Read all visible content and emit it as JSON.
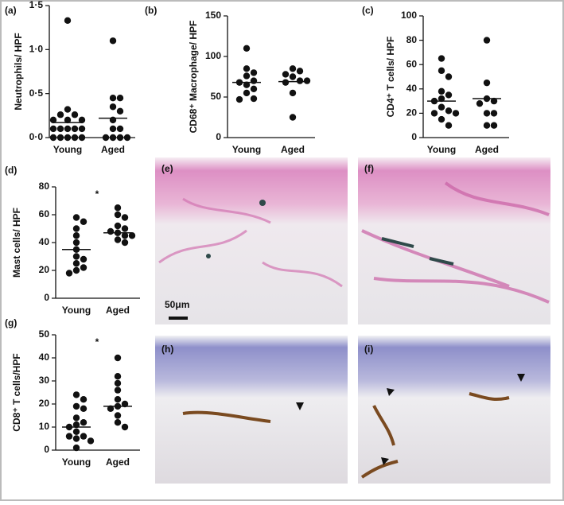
{
  "chart_data": [
    {
      "type": "dot",
      "panel": "(a)",
      "ylabel": "Neutrophils/ HPF",
      "categories": [
        "Young",
        "Aged"
      ],
      "groups": [
        [
          1.33,
          0.32,
          0.26,
          0.26,
          0.2,
          0.2,
          0.2,
          0.1,
          0.1,
          0.1,
          0.1,
          0.1,
          0,
          0,
          0,
          0,
          0
        ],
        [
          1.1,
          0.45,
          0.45,
          0.35,
          0.3,
          0.2,
          0.1,
          0.1,
          0,
          0,
          0,
          0
        ]
      ],
      "means": [
        0.17,
        0.22
      ],
      "color": "#111111",
      "ylim": [
        0,
        1.5
      ],
      "yticks": [
        {
          "value": 0,
          "label": "0·0"
        },
        {
          "value": 0.5,
          "label": "0·5"
        },
        {
          "value": 1,
          "label": "1·0"
        },
        {
          "value": 1.5,
          "label": "1·5"
        }
      ]
    },
    {
      "type": "dot",
      "panel": "(b)",
      "ylabel": "CD68⁺ Macrophage/ HPF",
      "categories": [
        "Young",
        "Aged"
      ],
      "groups": [
        [
          110,
          85,
          80,
          76,
          70,
          68,
          65,
          60,
          55,
          48,
          47
        ],
        [
          85,
          82,
          78,
          75,
          70,
          70,
          68,
          55,
          25
        ]
      ],
      "means": [
        68,
        69
      ],
      "color": "#111111",
      "ylim": [
        0,
        150
      ],
      "yticks": [
        0,
        50,
        100,
        150
      ]
    },
    {
      "type": "dot",
      "panel": "(c)",
      "ylabel": "CD4⁺ T cells/ HPF",
      "categories": [
        "Young",
        "Aged"
      ],
      "groups": [
        [
          65,
          55,
          50,
          38,
          35,
          32,
          30,
          25,
          22,
          20,
          20,
          15,
          10
        ],
        [
          80,
          45,
          32,
          30,
          28,
          20,
          20,
          10,
          10
        ]
      ],
      "means": [
        30,
        32
      ],
      "color": "#111111",
      "ylim": [
        0,
        100
      ],
      "yticks": [
        0,
        20,
        40,
        60,
        80,
        100
      ]
    },
    {
      "type": "dot",
      "panel": "(d)",
      "ylabel": "Mast cells/ HPF",
      "annotation": "*",
      "categories": [
        "Young",
        "Aged"
      ],
      "groups": [
        [
          58,
          55,
          50,
          45,
          40,
          35,
          30,
          28,
          25,
          22,
          20,
          18
        ],
        [
          65,
          60,
          58,
          52,
          50,
          48,
          47,
          45,
          45,
          42,
          40
        ]
      ],
      "means": [
        35,
        47
      ],
      "color": "#111111",
      "ylim": [
        0,
        80
      ],
      "yticks": [
        0,
        20,
        40,
        60,
        80
      ]
    },
    {
      "type": "dot",
      "panel": "(g)",
      "ylabel": "CD8⁺ T cells/HPF",
      "annotation": "*",
      "categories": [
        "Young",
        "Aged"
      ],
      "groups": [
        [
          24,
          22,
          19,
          18,
          14,
          12,
          11,
          10,
          8,
          6,
          6,
          5,
          4,
          1
        ],
        [
          40,
          32,
          29,
          26,
          22,
          20,
          19,
          18,
          15,
          12,
          10
        ]
      ],
      "means": [
        10,
        19
      ],
      "color": "#111111",
      "ylim": [
        0,
        50
      ],
      "yticks": [
        0,
        10,
        20,
        30,
        40,
        50
      ]
    }
  ],
  "images": [
    {
      "label": "(e)"
    },
    {
      "label": "(f)"
    },
    {
      "label": "(h)"
    },
    {
      "label": "(i)"
    }
  ],
  "scale_bar": "50μm"
}
